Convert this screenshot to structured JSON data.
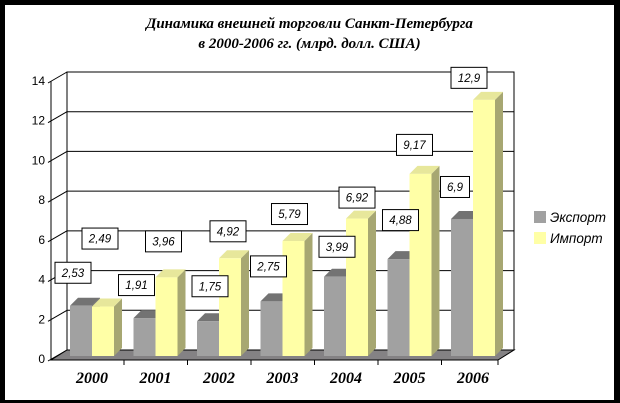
{
  "title": {
    "line1": "Динамика внешней торговли Санкт-Петербурга",
    "line2": "в 2000-2006 гг. (млрд. долл. США)"
  },
  "chart_data": {
    "type": "bar",
    "projection": "3d-clustered",
    "title": "Динамика внешней торговли Санкт-Петербурга в 2000-2006 гг. (млрд. долл. США)",
    "categories": [
      "2000",
      "2001",
      "2002",
      "2003",
      "2004",
      "2005",
      "2006"
    ],
    "series": [
      {
        "name": "Экспорт",
        "color": "#a1a1a1",
        "values": [
          2.53,
          1.91,
          1.75,
          2.75,
          3.99,
          4.88,
          6.9
        ],
        "labels": [
          "2,53",
          "1,91",
          "1,75",
          "2,75",
          "3,99",
          "4,88",
          "6,9"
        ]
      },
      {
        "name": "Импорт",
        "color": "#ffffa6",
        "values": [
          2.49,
          3.96,
          4.92,
          5.79,
          6.92,
          9.17,
          12.9
        ],
        "labels": [
          "2,49",
          "3,96",
          "4,92",
          "5,79",
          "6,92",
          "9,17",
          "12,9"
        ]
      }
    ],
    "ylim": [
      0,
      14
    ],
    "yticks": [
      "0",
      "2",
      "4",
      "6",
      "8",
      "10",
      "12",
      "14"
    ],
    "grid": true,
    "legend_position": "right",
    "decimal_separator": ",",
    "wall_color": "#ffffff",
    "floor_color": "#848284"
  }
}
